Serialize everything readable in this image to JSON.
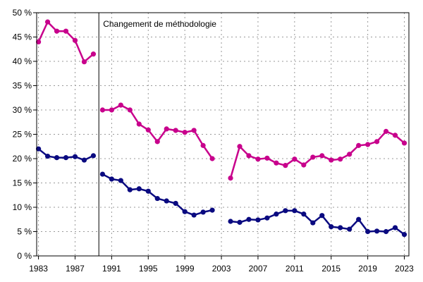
{
  "chart_data": {
    "type": "line",
    "title": "",
    "xlabel": "",
    "ylabel": "",
    "xlim": [
      1982.8,
      2023.5
    ],
    "ylim": [
      0,
      50
    ],
    "x_ticks": [
      1983,
      1987,
      1991,
      1995,
      1999,
      2003,
      2007,
      2011,
      2015,
      2019,
      2023
    ],
    "y_ticks": [
      0,
      5,
      10,
      15,
      20,
      25,
      30,
      35,
      40,
      45,
      50
    ],
    "y_tick_labels": [
      "0 %",
      "5 %",
      "10 %",
      "15 %",
      "20 %",
      "25 %",
      "30 %",
      "35 %",
      "40 %",
      "45 %",
      "50 %"
    ],
    "grid": true,
    "annotation": {
      "text": "Changement de méthodologie",
      "x": 1989.6
    },
    "series": [
      {
        "color": "#c8008c",
        "segments": [
          [
            [
              1983,
              44.0
            ],
            [
              1984,
              48.1
            ],
            [
              1985,
              46.2
            ],
            [
              1986,
              46.2
            ],
            [
              1987,
              44.3
            ],
            [
              1988,
              39.9
            ],
            [
              1989,
              41.5
            ]
          ],
          [
            [
              1990,
              30.0
            ],
            [
              1991,
              30.0
            ],
            [
              1992,
              31.0
            ],
            [
              1993,
              30.0
            ],
            [
              1994,
              27.1
            ],
            [
              1995,
              25.9
            ],
            [
              1996,
              23.5
            ],
            [
              1997,
              26.1
            ],
            [
              1998,
              25.8
            ],
            [
              1999,
              25.4
            ],
            [
              2000,
              25.8
            ],
            [
              2001,
              22.7
            ],
            [
              2002,
              20.0
            ]
          ],
          [
            [
              2004,
              16.0
            ],
            [
              2005,
              22.5
            ],
            [
              2006,
              20.6
            ],
            [
              2007,
              19.9
            ],
            [
              2008,
              20.1
            ],
            [
              2009,
              19.1
            ],
            [
              2010,
              18.6
            ],
            [
              2011,
              19.9
            ],
            [
              2012,
              18.7
            ],
            [
              2013,
              20.3
            ],
            [
              2014,
              20.6
            ],
            [
              2015,
              19.7
            ],
            [
              2016,
              19.9
            ],
            [
              2017,
              20.9
            ],
            [
              2018,
              22.7
            ],
            [
              2019,
              22.9
            ],
            [
              2020,
              23.5
            ],
            [
              2021,
              25.6
            ],
            [
              2022,
              24.8
            ],
            [
              2023,
              23.2
            ]
          ]
        ]
      },
      {
        "color": "#0a0a80",
        "segments": [
          [
            [
              1983,
              22.0
            ],
            [
              1984,
              20.5
            ],
            [
              1985,
              20.2
            ],
            [
              1986,
              20.2
            ],
            [
              1987,
              20.4
            ],
            [
              1988,
              19.7
            ],
            [
              1989,
              20.6
            ]
          ],
          [
            [
              1990,
              16.8
            ],
            [
              1991,
              15.8
            ],
            [
              1992,
              15.5
            ],
            [
              1993,
              13.6
            ],
            [
              1994,
              13.8
            ],
            [
              1995,
              13.3
            ],
            [
              1996,
              11.8
            ],
            [
              1997,
              11.3
            ],
            [
              1998,
              10.8
            ],
            [
              1999,
              9.1
            ],
            [
              2000,
              8.4
            ],
            [
              2001,
              9.0
            ],
            [
              2002,
              9.4
            ]
          ],
          [
            [
              2004,
              7.1
            ],
            [
              2005,
              6.9
            ],
            [
              2006,
              7.5
            ],
            [
              2007,
              7.4
            ],
            [
              2008,
              7.8
            ],
            [
              2009,
              8.6
            ],
            [
              2010,
              9.3
            ],
            [
              2011,
              9.3
            ],
            [
              2012,
              8.6
            ],
            [
              2013,
              6.8
            ],
            [
              2014,
              8.3
            ],
            [
              2015,
              6.0
            ],
            [
              2016,
              5.8
            ],
            [
              2017,
              5.5
            ],
            [
              2018,
              7.5
            ],
            [
              2019,
              5.0
            ],
            [
              2020,
              5.1
            ],
            [
              2021,
              5.0
            ],
            [
              2022,
              5.8
            ],
            [
              2023,
              4.4
            ]
          ]
        ]
      }
    ]
  }
}
